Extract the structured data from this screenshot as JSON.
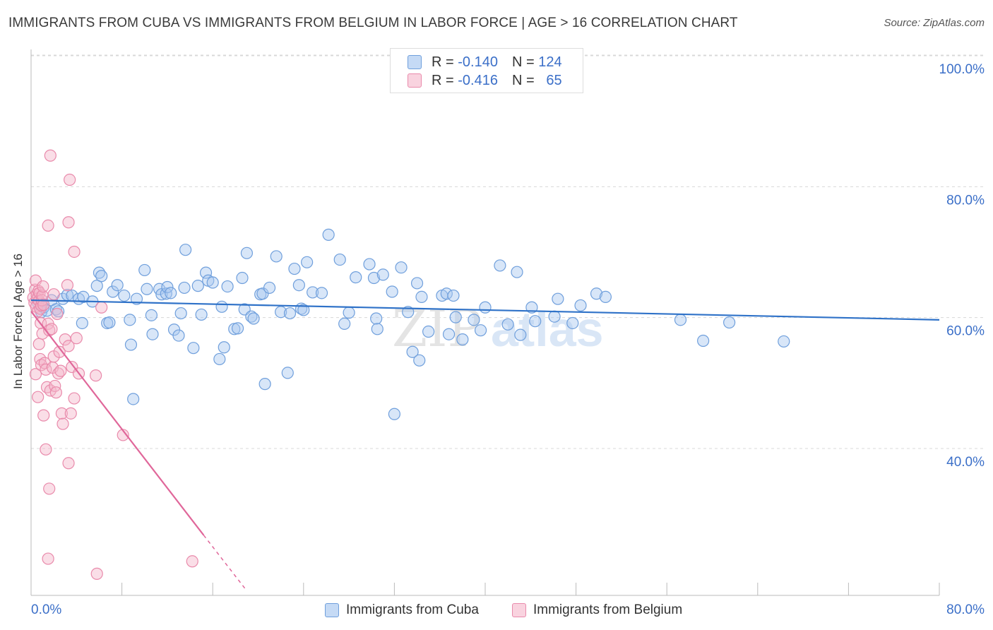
{
  "title": "IMMIGRANTS FROM CUBA VS IMMIGRANTS FROM BELGIUM IN LABOR FORCE | AGE > 16 CORRELATION CHART",
  "source": "Source: ZipAtlas.com",
  "watermark": "ZIPatlas",
  "legend_top": {
    "rows": [
      {
        "r_label": "R =",
        "r_value": "-0.140",
        "n_label": "N =",
        "n_value": "124",
        "color": "#a9c7ef"
      },
      {
        "r_label": "R =",
        "r_value": "-0.416",
        "n_label": "N =",
        "n_value": "65",
        "color": "#f4b6ca"
      }
    ]
  },
  "legend_bottom": {
    "cuba": "Immigrants from Cuba",
    "belgium": "Immigrants from Belgium"
  },
  "colors": {
    "cuba_fill": "#a9c7ef",
    "cuba_stroke": "#6f9fdc",
    "cuba_line": "#2f72c8",
    "belgium_fill": "#f4b6ca",
    "belgium_stroke": "#e98aab",
    "belgium_line": "#e0679a",
    "axis_text": "#3b6fc8",
    "grid": "#d8d8d8"
  },
  "chart_data": {
    "type": "scatter",
    "xlabel": "",
    "ylabel": "In Labor Force | Age > 16",
    "xlim": [
      0,
      80
    ],
    "ylim": [
      20,
      103
    ],
    "x_tick_labels": [
      {
        "v": 0,
        "label": "0.0%"
      },
      {
        "v": 80,
        "label": "80.0%"
      }
    ],
    "y_tick_labels": [
      {
        "v": 100,
        "label": "100.0%"
      },
      {
        "v": 80,
        "label": "80.0%"
      },
      {
        "v": 60,
        "label": "60.0%"
      },
      {
        "v": 40,
        "label": "40.0%"
      }
    ],
    "x_minor_ticks": [
      0,
      8,
      16,
      24,
      32,
      40,
      48,
      56,
      64,
      72,
      80
    ],
    "grid": true,
    "series": [
      {
        "name": "Immigrants from Cuba",
        "key": "cuba",
        "trend": [
          [
            0,
            64.6
          ],
          [
            80,
            61.6
          ]
        ],
        "points": [
          [
            0.6,
            64.2
          ],
          [
            0.9,
            62.8
          ],
          [
            1.1,
            63.5
          ],
          [
            1.4,
            63.0
          ],
          [
            1.8,
            64.6
          ],
          [
            2.2,
            63.2
          ],
          [
            2.4,
            62.9
          ],
          [
            2.8,
            64.8
          ],
          [
            3.2,
            65.4
          ],
          [
            3.6,
            65.3
          ],
          [
            4.2,
            64.8
          ],
          [
            4.6,
            65.1
          ],
          [
            4.5,
            61.1
          ],
          [
            5.4,
            64.4
          ],
          [
            5.8,
            66.8
          ],
          [
            6.0,
            68.8
          ],
          [
            6.2,
            68.3
          ],
          [
            6.7,
            61.1
          ],
          [
            6.9,
            61.2
          ],
          [
            7.2,
            65.9
          ],
          [
            7.6,
            66.9
          ],
          [
            8.2,
            65.3
          ],
          [
            8.7,
            61.6
          ],
          [
            8.8,
            57.8
          ],
          [
            9.3,
            64.8
          ],
          [
            9.0,
            49.5
          ],
          [
            10.0,
            69.2
          ],
          [
            10.2,
            66.3
          ],
          [
            10.6,
            62.3
          ],
          [
            10.7,
            59.4
          ],
          [
            11.3,
            66.3
          ],
          [
            11.5,
            65.5
          ],
          [
            11.9,
            65.6
          ],
          [
            12.0,
            66.6
          ],
          [
            12.3,
            65.7
          ],
          [
            12.6,
            60.1
          ],
          [
            13.0,
            59.2
          ],
          [
            13.2,
            62.6
          ],
          [
            13.5,
            66.5
          ],
          [
            13.6,
            72.3
          ],
          [
            14.3,
            57.3
          ],
          [
            14.7,
            66.8
          ],
          [
            15.0,
            62.4
          ],
          [
            15.4,
            68.8
          ],
          [
            15.6,
            67.6
          ],
          [
            16.0,
            67.3
          ],
          [
            16.6,
            55.6
          ],
          [
            16.8,
            63.6
          ],
          [
            17.0,
            57.4
          ],
          [
            17.3,
            66.7
          ],
          [
            17.9,
            60.2
          ],
          [
            18.2,
            60.3
          ],
          [
            18.6,
            68.0
          ],
          [
            18.8,
            63.2
          ],
          [
            19.0,
            71.8
          ],
          [
            19.4,
            62.1
          ],
          [
            19.6,
            61.8
          ],
          [
            20.2,
            65.5
          ],
          [
            20.4,
            65.6
          ],
          [
            20.6,
            51.8
          ],
          [
            21.0,
            66.5
          ],
          [
            21.6,
            71.3
          ],
          [
            22.0,
            62.8
          ],
          [
            22.6,
            53.5
          ],
          [
            22.8,
            62.6
          ],
          [
            23.2,
            69.4
          ],
          [
            23.6,
            66.9
          ],
          [
            23.8,
            63.3
          ],
          [
            24.0,
            63.1
          ],
          [
            24.3,
            70.4
          ],
          [
            24.8,
            65.8
          ],
          [
            25.6,
            65.7
          ],
          [
            26.2,
            74.6
          ],
          [
            27.2,
            70.8
          ],
          [
            27.6,
            61.0
          ],
          [
            28.0,
            62.7
          ],
          [
            28.6,
            68.1
          ],
          [
            29.8,
            70.1
          ],
          [
            30.2,
            68.0
          ],
          [
            30.4,
            61.8
          ],
          [
            30.5,
            60.2
          ],
          [
            31.0,
            68.5
          ],
          [
            31.8,
            65.9
          ],
          [
            32.0,
            47.2
          ],
          [
            32.6,
            69.6
          ],
          [
            33.2,
            62.8
          ],
          [
            33.6,
            56.7
          ],
          [
            34.0,
            67.2
          ],
          [
            34.2,
            55.4
          ],
          [
            34.4,
            65.1
          ],
          [
            35.0,
            59.8
          ],
          [
            36.2,
            65.3
          ],
          [
            36.6,
            65.6
          ],
          [
            36.8,
            59.4
          ],
          [
            37.2,
            65.3
          ],
          [
            37.4,
            62.0
          ],
          [
            38.0,
            58.6
          ],
          [
            39.0,
            61.6
          ],
          [
            39.6,
            60.0
          ],
          [
            40.0,
            63.5
          ],
          [
            41.3,
            69.9
          ],
          [
            42.0,
            60.9
          ],
          [
            42.8,
            68.9
          ],
          [
            43.1,
            59.3
          ],
          [
            44.1,
            63.5
          ],
          [
            44.4,
            61.4
          ],
          [
            46.1,
            62.1
          ],
          [
            46.4,
            64.8
          ],
          [
            47.7,
            61.1
          ],
          [
            48.4,
            63.8
          ],
          [
            49.8,
            65.6
          ],
          [
            50.6,
            65.1
          ],
          [
            57.2,
            61.6
          ],
          [
            59.2,
            58.4
          ],
          [
            61.5,
            61.2
          ],
          [
            66.3,
            58.3
          ]
        ]
      },
      {
        "name": "Immigrants from Belgium",
        "key": "belgium",
        "trend": [
          [
            0,
            62.9
          ],
          [
            15.2,
            28.7
          ]
        ],
        "trend_dashed": [
          [
            15.2,
            28.7
          ],
          [
            19.0,
            20.2
          ]
        ],
        "points": [
          [
            0.2,
            65.0
          ],
          [
            0.3,
            64.2
          ],
          [
            0.35,
            66.2
          ],
          [
            0.4,
            67.6
          ],
          [
            0.45,
            63.6
          ],
          [
            0.5,
            65.5
          ],
          [
            0.55,
            64.8
          ],
          [
            0.6,
            62.9
          ],
          [
            0.65,
            66.0
          ],
          [
            0.7,
            64.5
          ],
          [
            0.75,
            65.7
          ],
          [
            0.8,
            63.3
          ],
          [
            0.85,
            61.1
          ],
          [
            0.9,
            63.8
          ],
          [
            0.95,
            64.6
          ],
          [
            1.0,
            65.3
          ],
          [
            1.05,
            66.7
          ],
          [
            1.1,
            63.9
          ],
          [
            0.4,
            53.3
          ],
          [
            0.6,
            49.8
          ],
          [
            0.7,
            57.9
          ],
          [
            0.8,
            55.6
          ],
          [
            0.9,
            54.7
          ],
          [
            1.0,
            59.5
          ],
          [
            1.1,
            47.0
          ],
          [
            1.2,
            55.0
          ],
          [
            1.3,
            54.0
          ],
          [
            1.4,
            51.3
          ],
          [
            1.5,
            61.0
          ],
          [
            1.6,
            60.0
          ],
          [
            1.7,
            50.8
          ],
          [
            1.8,
            60.2
          ],
          [
            1.9,
            54.3
          ],
          [
            2.0,
            56.0
          ],
          [
            2.1,
            51.5
          ],
          [
            2.2,
            50.5
          ],
          [
            2.3,
            62.5
          ],
          [
            2.4,
            53.4
          ],
          [
            2.5,
            56.7
          ],
          [
            2.6,
            53.8
          ],
          [
            2.7,
            47.3
          ],
          [
            2.8,
            45.7
          ],
          [
            3.0,
            58.6
          ],
          [
            3.2,
            66.9
          ],
          [
            3.3,
            57.6
          ],
          [
            3.5,
            47.3
          ],
          [
            3.6,
            54.4
          ],
          [
            3.8,
            49.6
          ],
          [
            4.0,
            58.8
          ],
          [
            4.2,
            53.4
          ],
          [
            1.5,
            76.0
          ],
          [
            1.7,
            86.7
          ],
          [
            3.4,
            83.0
          ],
          [
            3.3,
            76.5
          ],
          [
            3.8,
            72.0
          ],
          [
            5.7,
            53.1
          ],
          [
            6.2,
            63.5
          ],
          [
            8.1,
            44.0
          ],
          [
            1.3,
            41.8
          ],
          [
            3.3,
            39.7
          ],
          [
            1.6,
            35.8
          ],
          [
            1.5,
            25.1
          ],
          [
            5.8,
            22.8
          ],
          [
            14.2,
            24.7
          ],
          [
            2.0,
            65.5
          ]
        ]
      }
    ]
  }
}
